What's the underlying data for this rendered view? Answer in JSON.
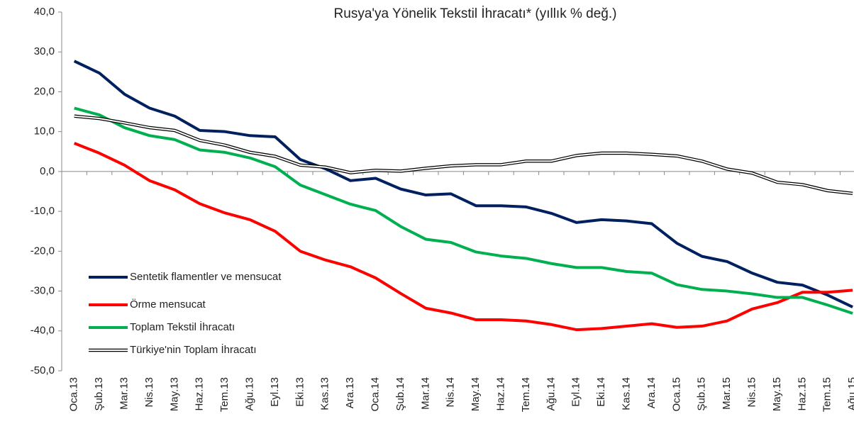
{
  "chart_data": {
    "type": "line",
    "title": "Rusya'ya Yönelik Tekstil İhracatı* (yıllık % değ.)",
    "categories": [
      "Oca.13",
      "Şub.13",
      "Mar.13",
      "Nis.13",
      "May.13",
      "Haz.13",
      "Tem.13",
      "Ağu.13",
      "Eyl.13",
      "Eki.13",
      "Kas.13",
      "Ara.13",
      "Oca.14",
      "Şub.14",
      "Mar.14",
      "Nis.14",
      "May.14",
      "Haz.14",
      "Tem.14",
      "Ağu.14",
      "Eyl.14",
      "Eki.14",
      "Kas.14",
      "Ara.14",
      "Oca.15",
      "Şub.15",
      "Mar.15",
      "Nis.15",
      "May.15",
      "Haz.15",
      "Tem.15",
      "Ağu.15"
    ],
    "series": [
      {
        "name": "Sentetik flamentler ve mensucat",
        "color": "#002060",
        "values": [
          27.7,
          24.7,
          19.4,
          15.9,
          13.9,
          10.3,
          10.0,
          9.0,
          8.7,
          3.0,
          0.7,
          -2.3,
          -1.7,
          -4.4,
          -5.9,
          -5.6,
          -8.6,
          -8.6,
          -8.9,
          -10.5,
          -12.8,
          -12.1,
          -12.4,
          -13.1,
          -18.0,
          -21.3,
          -22.6,
          -25.5,
          -27.8,
          -28.5,
          -31.0,
          -34.0
        ]
      },
      {
        "name": "Örme mensucat",
        "color": "#ff0000",
        "values": [
          7.1,
          4.6,
          1.6,
          -2.3,
          -4.6,
          -8.1,
          -10.4,
          -12.1,
          -15.0,
          -20.0,
          -22.2,
          -23.9,
          -26.7,
          -30.6,
          -34.3,
          -35.5,
          -37.2,
          -37.2,
          -37.5,
          -38.4,
          -39.7,
          -39.4,
          -38.8,
          -38.2,
          -39.1,
          -38.8,
          -37.5,
          -34.5,
          -32.9,
          -30.3,
          -30.3,
          -29.8
        ]
      },
      {
        "name": "Toplam Tekstil İhracatı",
        "color": "#00b050",
        "values": [
          15.9,
          14.2,
          11.0,
          9.0,
          8.0,
          5.4,
          4.8,
          3.4,
          1.2,
          -3.4,
          -5.8,
          -8.2,
          -9.8,
          -13.8,
          -17.0,
          -17.8,
          -20.2,
          -21.2,
          -21.8,
          -23.1,
          -24.1,
          -24.1,
          -25.1,
          -25.5,
          -28.4,
          -29.6,
          -30.0,
          -30.7,
          -31.6,
          -31.6,
          -33.5,
          -35.6
        ]
      },
      {
        "name": "Türkiye'nin Toplam İhracatı",
        "color": "#ffffff",
        "outline": "#000000",
        "values": [
          13.9,
          13.3,
          12.2,
          11.0,
          10.3,
          7.8,
          6.6,
          4.8,
          3.8,
          1.6,
          1.1,
          -0.3,
          0.3,
          0.1,
          0.8,
          1.4,
          1.7,
          1.7,
          2.6,
          2.6,
          4.0,
          4.6,
          4.6,
          4.3,
          3.9,
          2.6,
          0.6,
          -0.4,
          -2.7,
          -3.3,
          -4.8,
          -5.5
        ]
      }
    ],
    "ylim": [
      -50,
      40
    ],
    "yticks": [
      {
        "value": 40,
        "label": "40,0"
      },
      {
        "value": 30,
        "label": "30,0"
      },
      {
        "value": 20,
        "label": "20,0"
      },
      {
        "value": 10,
        "label": "10,0"
      },
      {
        "value": 0,
        "label": "0,0"
      },
      {
        "value": -10,
        "label": "-10,0"
      },
      {
        "value": -20,
        "label": "-20,0"
      },
      {
        "value": -30,
        "label": "-30,0"
      },
      {
        "value": -40,
        "label": "-40,0"
      },
      {
        "value": -50,
        "label": "-50,0"
      }
    ],
    "grid": false
  }
}
